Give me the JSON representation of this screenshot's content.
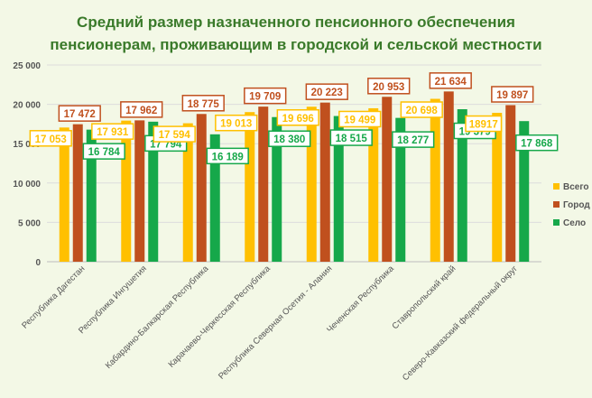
{
  "chart_data": {
    "type": "bar",
    "title_lines": [
      "Средний размер назначенного пенсионного обеспечения",
      "пенсионерам, проживающим в городской и сельской местности"
    ],
    "categories": [
      "Республика Дагестан",
      "Республика Ингушетия",
      "Кабардино-Балкарская Республика",
      "Карачаево-Черкесская Республика",
      "Республика Северная Осетия - Алания",
      "Чеченская Республика",
      "Ставропольский край",
      "Северо-Кавказский федеральный округ"
    ],
    "series": [
      {
        "name": "Всего",
        "color": "#ffc000",
        "values": [
          17053,
          17931,
          17594,
          19013,
          19696,
          19499,
          20698,
          18917
        ],
        "labels": [
          "17 053",
          "17 931",
          "17 594",
          "19 013",
          "19 696",
          "19 499",
          "20 698",
          "18917"
        ]
      },
      {
        "name": "Город",
        "color": "#c0501e",
        "values": [
          17472,
          17962,
          18775,
          19709,
          20223,
          20953,
          21634,
          19897
        ],
        "labels": [
          "17 472",
          "17 962",
          "18 775",
          "19 709",
          "20 223",
          "20 953",
          "21 634",
          "19 897"
        ]
      },
      {
        "name": "Село",
        "color": "#16a84a",
        "values": [
          16784,
          17794,
          16189,
          18380,
          18515,
          18277,
          19379,
          17868
        ],
        "labels": [
          "16 784",
          "17 794",
          "16 189",
          "18 380",
          "18 515",
          "18 277",
          "19 379",
          "17 868"
        ]
      }
    ],
    "y_ticks": [
      "0",
      "5 000",
      "10 000",
      "15 000",
      "20 000",
      "25 000"
    ],
    "y_tick_values": [
      0,
      5000,
      10000,
      15000,
      20000,
      25000
    ],
    "ylim": [
      0,
      25000
    ],
    "grid": true,
    "legend_position": "right",
    "title_color": "#3a7a2a",
    "text_color": "#555555"
  }
}
